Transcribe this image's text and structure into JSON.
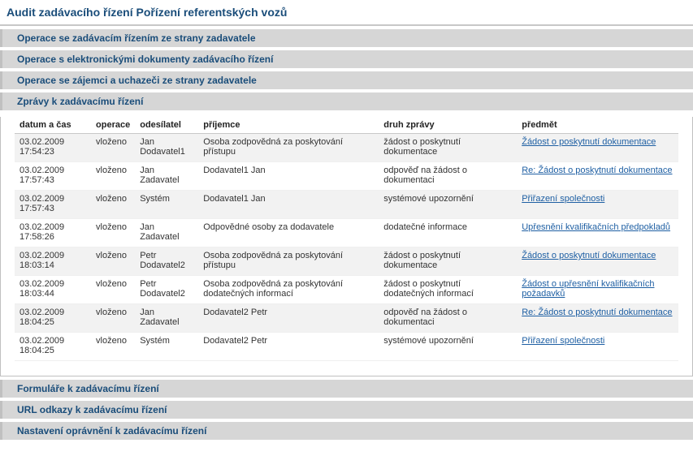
{
  "title": "Audit zadávacího řízení Pořízení referentských vozů",
  "sections": [
    {
      "label": "Operace se zadávacím řízením ze strany zadavatele"
    },
    {
      "label": "Operace s elektronickými dokumenty zadávacího řízení"
    },
    {
      "label": "Operace se zájemci a uchazeči ze strany zadavatele"
    },
    {
      "label": "Zprávy k zadávacímu řízení"
    },
    {
      "label": "Formuláře k zadávacímu řízení"
    },
    {
      "label": "URL odkazy k zadávacímu řízení"
    },
    {
      "label": "Nastavení oprávnění k zadávacímu řízení"
    }
  ],
  "table": {
    "headers": {
      "datum": "datum a čas",
      "operace": "operace",
      "odesilatel": "odesílatel",
      "prijemce": "příjemce",
      "druh": "druh zprávy",
      "predmet": "předmět"
    },
    "rows": [
      {
        "datum": "03.02.2009 17:54:23",
        "operace": "vloženo",
        "odesilatel": "Jan Dodavatel1",
        "prijemce": "Osoba zodpovědná za poskytování přístupu",
        "druh": "žádost o poskytnutí dokumentace",
        "predmet": "Žádost o poskytnutí dokumentace"
      },
      {
        "datum": "03.02.2009 17:57:43",
        "operace": "vloženo",
        "odesilatel": "Jan Zadavatel",
        "prijemce": "Dodavatel1 Jan",
        "druh": "odpověď na žádost o dokumentaci",
        "predmet": "Re: Žádost o poskytnutí dokumentace"
      },
      {
        "datum": "03.02.2009 17:57:43",
        "operace": "vloženo",
        "odesilatel": "Systém",
        "prijemce": "Dodavatel1 Jan",
        "druh": "systémové upozornění",
        "predmet": "Přiřazení společnosti"
      },
      {
        "datum": "03.02.2009 17:58:26",
        "operace": "vloženo",
        "odesilatel": "Jan Zadavatel",
        "prijemce": "Odpovědné osoby za dodavatele",
        "druh": "dodatečné informace",
        "predmet": "Upřesnění kvalifikačních předpokladů"
      },
      {
        "datum": "03.02.2009 18:03:14",
        "operace": "vloženo",
        "odesilatel": "Petr Dodavatel2",
        "prijemce": "Osoba zodpovědná za poskytování přístupu",
        "druh": "žádost o poskytnutí dokumentace",
        "predmet": "Žádost o poskytnutí dokumentace"
      },
      {
        "datum": "03.02.2009 18:03:44",
        "operace": "vloženo",
        "odesilatel": "Petr Dodavatel2",
        "prijemce": "Osoba zodpovědná za poskytování dodatečných informací",
        "druh": "žádost o poskytnutí dodatečných informací",
        "predmet": "Žádost o upřesnění kvalifikačních požadavků"
      },
      {
        "datum": "03.02.2009 18:04:25",
        "operace": "vloženo",
        "odesilatel": "Jan Zadavatel",
        "prijemce": "Dodavatel2 Petr",
        "druh": "odpověď na žádost o dokumentaci",
        "predmet": "Re: Žádost o poskytnutí dokumentace"
      },
      {
        "datum": "03.02.2009 18:04:25",
        "operace": "vloženo",
        "odesilatel": "Systém",
        "prijemce": "Dodavatel2 Petr",
        "druh": "systémové upozornění",
        "predmet": "Přiřazení společnosti"
      }
    ]
  }
}
